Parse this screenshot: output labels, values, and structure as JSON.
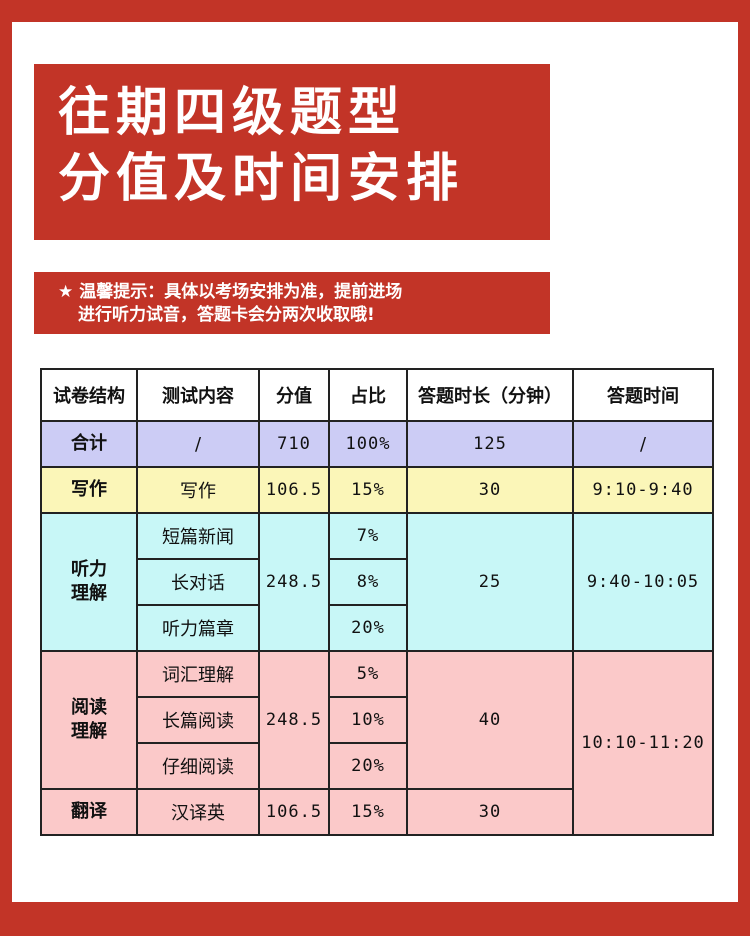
{
  "title": {
    "line1": "往期四级题型",
    "line2": "分值及时间安排"
  },
  "tip": {
    "star": "★",
    "line1": "温馨提示：具体以考场安排为准，提前进场",
    "line2": "进行听力试音，答题卡会分两次收取哦!"
  },
  "table": {
    "headers": [
      "试卷结构",
      "测试内容",
      "分值",
      "占比",
      "答题时长（分钟）",
      "答题时间"
    ],
    "total": {
      "section": "合计",
      "content": "/",
      "score": "710",
      "ratio": "100%",
      "duration": "125",
      "time": "/"
    },
    "writing": {
      "section": "写作",
      "content": "写作",
      "score": "106.5",
      "ratio": "15%",
      "duration": "30",
      "time": "9:10-9:40"
    },
    "listening": {
      "section_line1": "听力",
      "section_line2": "理解",
      "score": "248.5",
      "duration": "25",
      "time": "9:40-10:05",
      "items": [
        {
          "content": "短篇新闻",
          "ratio": "7%"
        },
        {
          "content": "长对话",
          "ratio": "8%"
        },
        {
          "content": "听力篇章",
          "ratio": "20%"
        }
      ]
    },
    "reading": {
      "section_line1": "阅读",
      "section_line2": "理解",
      "score": "248.5",
      "duration": "40",
      "time": "10:10-11:20",
      "items": [
        {
          "content": "词汇理解",
          "ratio": "5%"
        },
        {
          "content": "长篇阅读",
          "ratio": "10%"
        },
        {
          "content": "仔细阅读",
          "ratio": "20%"
        }
      ]
    },
    "translation": {
      "section": "翻译",
      "content": "汉译英",
      "score": "106.5",
      "ratio": "15%",
      "duration": "30"
    }
  },
  "colors": {
    "brand_red": "#c23427",
    "total_row": "#ccccf5",
    "writing_row": "#fbf6b8",
    "listening_row": "#c8f7f7",
    "reading_row": "#fbc9c9"
  }
}
